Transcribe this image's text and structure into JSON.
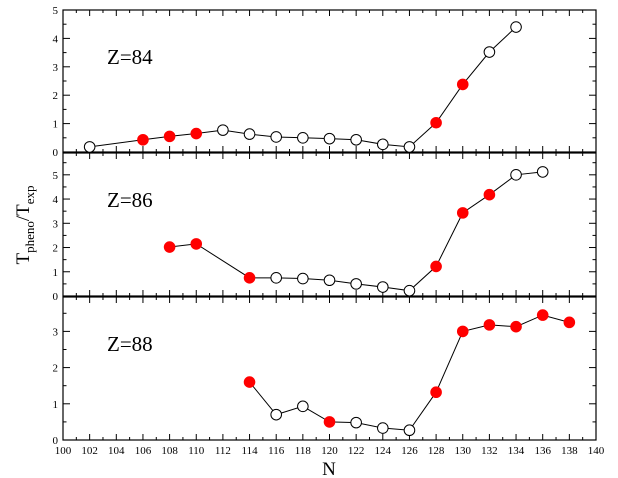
{
  "chart_data": {
    "type": "scatter",
    "xlabel": "N",
    "ylabel": {
      "main": "T",
      "sub1": "pheno",
      "mid": "/T",
      "sub2": "exp"
    },
    "xlim": [
      100,
      140
    ],
    "x_ticks": [
      100,
      102,
      104,
      106,
      108,
      110,
      112,
      114,
      116,
      118,
      120,
      122,
      124,
      126,
      128,
      130,
      132,
      134,
      136,
      138,
      140
    ],
    "legend": "none",
    "grid": false,
    "marker_colors": {
      "filled": "#ff0000",
      "open": "#ffffff",
      "outline": "#000000"
    },
    "panels": [
      {
        "label": "Z=84",
        "ylim": [
          0,
          5
        ],
        "y_ticks": [
          0,
          1,
          2,
          3,
          4,
          5
        ],
        "points": [
          {
            "x": 102,
            "y": 0.18,
            "filled": false
          },
          {
            "x": 106,
            "y": 0.43,
            "filled": true
          },
          {
            "x": 108,
            "y": 0.55,
            "filled": true
          },
          {
            "x": 110,
            "y": 0.65,
            "filled": true
          },
          {
            "x": 112,
            "y": 0.77,
            "filled": false
          },
          {
            "x": 114,
            "y": 0.63,
            "filled": false
          },
          {
            "x": 116,
            "y": 0.53,
            "filled": false
          },
          {
            "x": 118,
            "y": 0.5,
            "filled": false
          },
          {
            "x": 120,
            "y": 0.47,
            "filled": false
          },
          {
            "x": 122,
            "y": 0.43,
            "filled": false
          },
          {
            "x": 124,
            "y": 0.27,
            "filled": false
          },
          {
            "x": 126,
            "y": 0.18,
            "filled": false
          },
          {
            "x": 128,
            "y": 1.03,
            "filled": true
          },
          {
            "x": 130,
            "y": 2.38,
            "filled": true
          },
          {
            "x": 132,
            "y": 3.52,
            "filled": false
          },
          {
            "x": 134,
            "y": 4.4,
            "filled": false
          }
        ]
      },
      {
        "label": "Z=86",
        "ylim": [
          0,
          5.9
        ],
        "y_ticks": [
          0,
          1,
          2,
          3,
          4,
          5
        ],
        "points": [
          {
            "x": 108,
            "y": 2.02,
            "filled": true
          },
          {
            "x": 110,
            "y": 2.15,
            "filled": true
          },
          {
            "x": 114,
            "y": 0.75,
            "filled": true
          },
          {
            "x": 116,
            "y": 0.75,
            "filled": false
          },
          {
            "x": 118,
            "y": 0.72,
            "filled": false
          },
          {
            "x": 120,
            "y": 0.65,
            "filled": false
          },
          {
            "x": 122,
            "y": 0.5,
            "filled": false
          },
          {
            "x": 124,
            "y": 0.37,
            "filled": false
          },
          {
            "x": 126,
            "y": 0.22,
            "filled": false
          },
          {
            "x": 128,
            "y": 1.22,
            "filled": true
          },
          {
            "x": 130,
            "y": 3.43,
            "filled": true
          },
          {
            "x": 132,
            "y": 4.18,
            "filled": true
          },
          {
            "x": 134,
            "y": 5.0,
            "filled": false
          },
          {
            "x": 136,
            "y": 5.12,
            "filled": false
          }
        ]
      },
      {
        "label": "Z=88",
        "ylim": [
          0,
          3.95
        ],
        "y_ticks": [
          0,
          1,
          2,
          3
        ],
        "points": [
          {
            "x": 114,
            "y": 1.6,
            "filled": true
          },
          {
            "x": 116,
            "y": 0.7,
            "filled": false
          },
          {
            "x": 118,
            "y": 0.93,
            "filled": false
          },
          {
            "x": 120,
            "y": 0.5,
            "filled": true
          },
          {
            "x": 122,
            "y": 0.48,
            "filled": false
          },
          {
            "x": 124,
            "y": 0.33,
            "filled": false
          },
          {
            "x": 126,
            "y": 0.27,
            "filled": false
          },
          {
            "x": 128,
            "y": 1.32,
            "filled": true
          },
          {
            "x": 130,
            "y": 3.0,
            "filled": true
          },
          {
            "x": 132,
            "y": 3.18,
            "filled": true
          },
          {
            "x": 134,
            "y": 3.13,
            "filled": true
          },
          {
            "x": 136,
            "y": 3.45,
            "filled": true
          },
          {
            "x": 138,
            "y": 3.25,
            "filled": true
          }
        ]
      }
    ]
  }
}
